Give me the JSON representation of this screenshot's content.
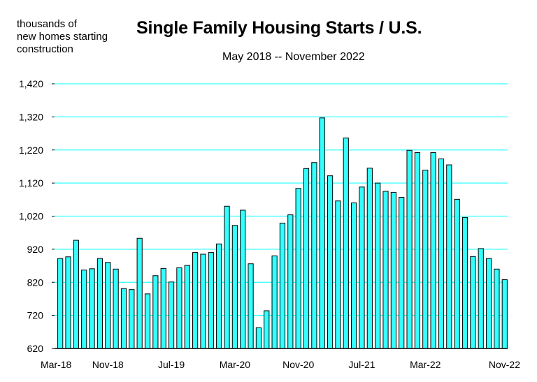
{
  "chart_data": {
    "type": "bar",
    "title": "Single Family Housing Starts / U.S.",
    "subtitle": "May 2018 -- November 2022",
    "ylabel_lines": [
      "thousands of",
      "new homes starting",
      "construction"
    ],
    "ylim": [
      620,
      1420
    ],
    "yticks": [
      "620",
      "720",
      "820",
      "920",
      "1,020",
      "1,120",
      "1,220",
      "1,320",
      "1,420"
    ],
    "ytick_values": [
      620,
      720,
      820,
      920,
      1020,
      1120,
      1220,
      1320,
      1420
    ],
    "xtick_labels": [
      "Mar-18",
      "Nov-18",
      "Jul-19",
      "Mar-20",
      "Nov-20",
      "Jul-21",
      "Mar-22",
      "Nov-22"
    ],
    "xtick_indices": [
      -2,
      6,
      14,
      22,
      30,
      38,
      46,
      54
    ],
    "grid": true,
    "colors": {
      "bar_fill": "#33ffff",
      "bar_stroke": "#000000",
      "grid": "#33ffff",
      "axis": "#000000"
    },
    "values": [
      892,
      897,
      947,
      857,
      861,
      892,
      880,
      860,
      801,
      798,
      953,
      785,
      840,
      862,
      821,
      864,
      871,
      910,
      905,
      910,
      936,
      1050,
      992,
      1038,
      876,
      683,
      734,
      900,
      999,
      1024,
      1104,
      1164,
      1182,
      1317,
      1142,
      1066,
      1256,
      1060,
      1108,
      1165,
      1120,
      1095,
      1092,
      1077,
      1219,
      1212,
      1159,
      1212,
      1193,
      1175,
      1071,
      1016,
      898,
      922,
      892,
      860,
      828
    ]
  }
}
